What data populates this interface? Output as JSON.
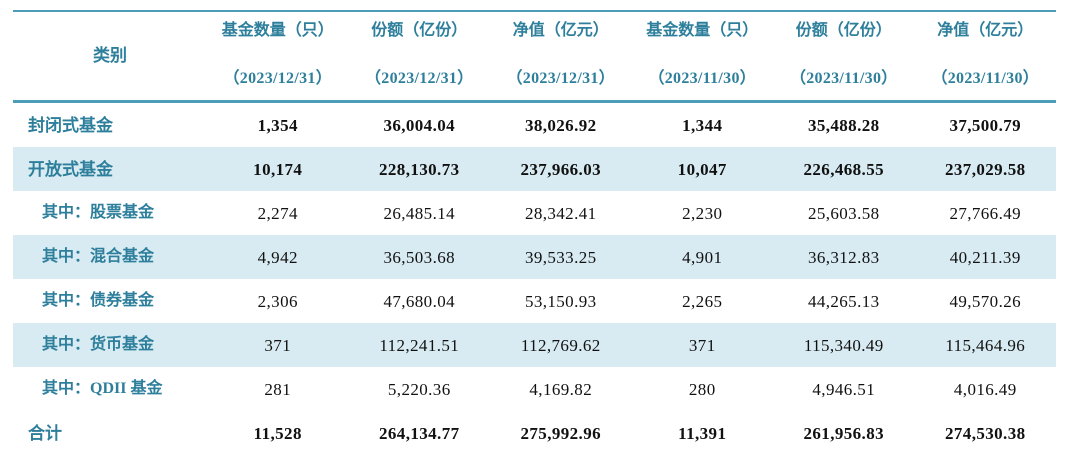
{
  "colors": {
    "teal_text": "#2e7f9c",
    "rule_line": "#4c9db8",
    "stripe_bg": "#d8ebf2",
    "number_color": "#111111"
  },
  "chart_data": {
    "type": "table",
    "category_header": "类别",
    "column_headers": [
      {
        "title": "基金数量（只）",
        "date": "（2023/12/31）"
      },
      {
        "title": "份额（亿份）",
        "date": "（2023/12/31）"
      },
      {
        "title": "净值（亿元）",
        "date": "（2023/12/31）"
      },
      {
        "title": "基金数量（只）",
        "date": "（2023/11/30）"
      },
      {
        "title": "份额（亿份）",
        "date": "（2023/11/30）"
      },
      {
        "title": "净值（亿元）",
        "date": "（2023/11/30）"
      }
    ],
    "rows": [
      {
        "label": "封闭式基金",
        "values": [
          "1,354",
          "36,004.04",
          "38,026.92",
          "1,344",
          "35,488.28",
          "37,500.79"
        ],
        "bold": true,
        "striped": false,
        "indent": 1
      },
      {
        "label": "开放式基金",
        "values": [
          "10,174",
          "228,130.73",
          "237,966.03",
          "10,047",
          "226,468.55",
          "237,029.58"
        ],
        "bold": true,
        "striped": true,
        "indent": 1
      },
      {
        "label": "其中：股票基金",
        "values": [
          "2,274",
          "26,485.14",
          "28,342.41",
          "2,230",
          "25,603.58",
          "27,766.49"
        ],
        "bold": false,
        "striped": false,
        "indent": 2
      },
      {
        "label": "其中：混合基金",
        "values": [
          "4,942",
          "36,503.68",
          "39,533.25",
          "4,901",
          "36,312.83",
          "40,211.39"
        ],
        "bold": false,
        "striped": true,
        "indent": 2
      },
      {
        "label": "其中：债券基金",
        "values": [
          "2,306",
          "47,680.04",
          "53,150.93",
          "2,265",
          "44,265.13",
          "49,570.26"
        ],
        "bold": false,
        "striped": false,
        "indent": 2
      },
      {
        "label": "其中：货币基金",
        "values": [
          "371",
          "112,241.51",
          "112,769.62",
          "371",
          "115,340.49",
          "115,464.96"
        ],
        "bold": false,
        "striped": true,
        "indent": 2
      },
      {
        "label": "其中：QDII 基金",
        "values": [
          "281",
          "5,220.36",
          "4,169.82",
          "280",
          "4,946.51",
          "4,016.49"
        ],
        "bold": false,
        "striped": false,
        "indent": 2
      },
      {
        "label": "合计",
        "values": [
          "11,528",
          "264,134.77",
          "275,992.96",
          "11,391",
          "261,956.83",
          "274,530.38"
        ],
        "bold": true,
        "striped": false,
        "indent": 1
      }
    ]
  }
}
